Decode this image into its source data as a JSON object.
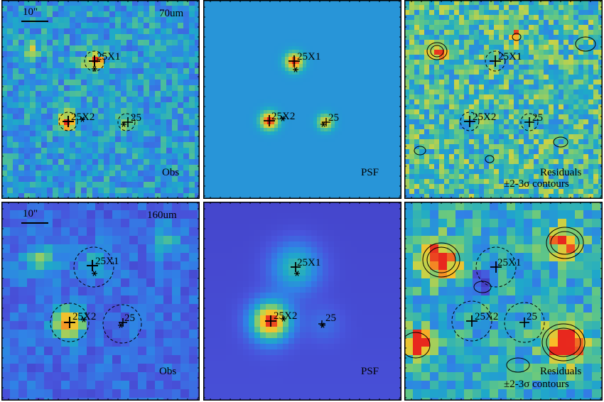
{
  "scale_bar_label": "10\"",
  "rows": [
    {
      "band": "70um",
      "panels": [
        {
          "kind": "obs",
          "label": "Obs"
        },
        {
          "kind": "psf",
          "label": "PSF"
        },
        {
          "kind": "res",
          "label": "Residuals",
          "sublabel": "±2-3σ contours"
        }
      ]
    },
    {
      "band": "160um",
      "panels": [
        {
          "kind": "obs",
          "label": "Obs"
        },
        {
          "kind": "psf",
          "label": "PSF"
        },
        {
          "kind": "res",
          "label": "Residuals",
          "sublabel": "±2-3σ contours"
        }
      ]
    }
  ],
  "sources": [
    "25X1",
    "25X2",
    "25"
  ],
  "colors": {
    "frame": "#000000",
    "psf_bg_top": "#4a93c9",
    "psf_bg_bottom": "#4a52a4",
    "hot": "#e8281e"
  }
}
